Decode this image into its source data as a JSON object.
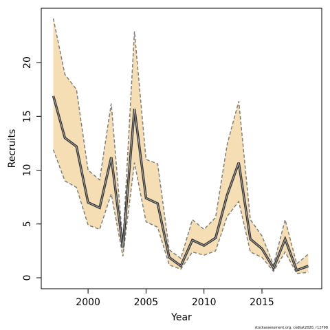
{
  "chart_data": {
    "type": "line",
    "xlabel": "Year",
    "ylabel": "Recruits",
    "footnote": "stockassessment.org, codkat2020, r12798",
    "x": [
      1997,
      1998,
      1999,
      2000,
      2001,
      2002,
      2003,
      2004,
      2005,
      2006,
      2007,
      2008,
      2009,
      2010,
      2011,
      2012,
      2013,
      2014,
      2015,
      2016,
      2017,
      2018,
      2019
    ],
    "values": [
      16.9,
      13.0,
      12.2,
      7.0,
      6.5,
      11.2,
      2.8,
      15.7,
      7.4,
      6.9,
      1.9,
      1.1,
      3.5,
      3.0,
      3.7,
      7.7,
      10.7,
      3.6,
      2.7,
      0.9,
      3.6,
      0.7,
      1.1
    ],
    "upper": [
      24.1,
      18.9,
      17.5,
      10.0,
      9.1,
      16.2,
      3.2,
      22.9,
      11.0,
      10.6,
      2.6,
      1.8,
      5.4,
      4.5,
      5.6,
      12.4,
      16.4,
      5.4,
      3.9,
      1.2,
      5.4,
      1.3,
      2.2
    ],
    "lower": [
      11.9,
      9.0,
      8.4,
      4.9,
      4.5,
      7.8,
      2.0,
      10.7,
      5.2,
      4.7,
      1.2,
      0.8,
      2.4,
      2.1,
      2.5,
      5.7,
      7.1,
      2.4,
      1.9,
      0.6,
      2.4,
      0.4,
      0.5
    ],
    "color": "#333333",
    "band_color": "#f5deb3",
    "bound_color": "#7f7f7f",
    "xlim": [
      1995.96,
      2020.16
    ],
    "xticks": [
      2000,
      2005,
      2010,
      2015
    ],
    "ylim": [
      -1.02,
      25.05
    ],
    "yticks": [
      0,
      5,
      10,
      15,
      20
    ]
  }
}
